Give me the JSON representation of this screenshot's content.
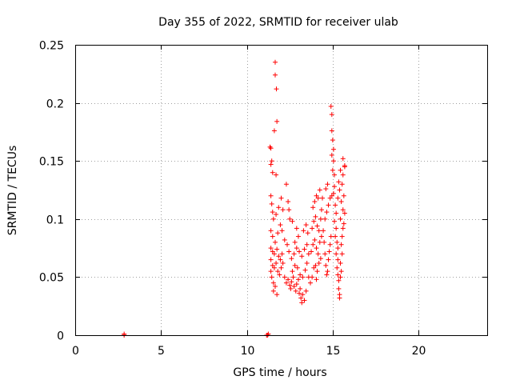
{
  "chart_data": {
    "type": "scatter",
    "title": "Day 355 of 2022, SRMTID for receiver ulab",
    "xlabel": "GPS time / hours",
    "ylabel": "SRMTID / TECUs",
    "xlim": [
      0,
      24
    ],
    "ylim": [
      0,
      0.25
    ],
    "xticks": [
      0,
      5,
      10,
      15,
      20
    ],
    "yticks": [
      0,
      0.05,
      0.1,
      0.15,
      0.2,
      0.25
    ],
    "xtick_labels": [
      "0",
      "5",
      "10",
      "15",
      "20"
    ],
    "ytick_labels": [
      "0",
      "0.05",
      "0.1",
      "0.15",
      "0.2",
      "0.25"
    ],
    "grid": true,
    "marker": "+",
    "series": [
      {
        "name": "SRMTID",
        "color": "#ff0000",
        "points": [
          [
            2.85,
            0.0
          ],
          [
            2.85,
            0.001
          ],
          [
            11.15,
            0.0
          ],
          [
            11.2,
            0.0
          ],
          [
            11.25,
            0.001
          ],
          [
            11.65,
            0.235
          ],
          [
            11.65,
            0.224
          ],
          [
            11.72,
            0.212
          ],
          [
            11.75,
            0.184
          ],
          [
            11.6,
            0.176
          ],
          [
            11.35,
            0.162
          ],
          [
            11.4,
            0.161
          ],
          [
            11.45,
            0.15
          ],
          [
            11.4,
            0.147
          ],
          [
            11.5,
            0.14
          ],
          [
            11.7,
            0.138
          ],
          [
            11.4,
            0.12
          ],
          [
            11.45,
            0.113
          ],
          [
            11.5,
            0.106
          ],
          [
            11.55,
            0.1
          ],
          [
            11.7,
            0.104
          ],
          [
            11.85,
            0.11
          ],
          [
            12.0,
            0.118
          ],
          [
            12.1,
            0.108
          ],
          [
            12.3,
            0.13
          ],
          [
            11.4,
            0.09
          ],
          [
            11.5,
            0.085
          ],
          [
            11.65,
            0.08
          ],
          [
            11.8,
            0.088
          ],
          [
            11.95,
            0.095
          ],
          [
            12.05,
            0.09
          ],
          [
            12.2,
            0.082
          ],
          [
            12.35,
            0.078
          ],
          [
            11.4,
            0.075
          ],
          [
            11.5,
            0.072
          ],
          [
            11.6,
            0.07
          ],
          [
            11.75,
            0.074
          ],
          [
            11.85,
            0.068
          ],
          [
            11.95,
            0.065
          ],
          [
            12.05,
            0.07
          ],
          [
            11.4,
            0.065
          ],
          [
            11.5,
            0.06
          ],
          [
            11.6,
            0.058
          ],
          [
            11.7,
            0.062
          ],
          [
            11.8,
            0.055
          ],
          [
            11.9,
            0.052
          ],
          [
            12.0,
            0.058
          ],
          [
            12.1,
            0.062
          ],
          [
            11.45,
            0.05
          ],
          [
            11.55,
            0.045
          ],
          [
            11.65,
            0.042
          ],
          [
            11.55,
            0.038
          ],
          [
            11.75,
            0.035
          ],
          [
            11.4,
            0.055
          ],
          [
            12.2,
            0.05
          ],
          [
            12.3,
            0.045
          ],
          [
            12.4,
            0.048
          ],
          [
            12.5,
            0.043
          ],
          [
            12.55,
            0.04
          ],
          [
            12.6,
            0.046
          ],
          [
            12.7,
            0.05
          ],
          [
            12.75,
            0.042
          ],
          [
            12.85,
            0.038
          ],
          [
            12.9,
            0.044
          ],
          [
            13.0,
            0.048
          ],
          [
            13.05,
            0.036
          ],
          [
            13.1,
            0.04
          ],
          [
            13.15,
            0.032
          ],
          [
            13.25,
            0.035
          ],
          [
            13.2,
            0.028
          ],
          [
            13.35,
            0.03
          ],
          [
            13.45,
            0.038
          ],
          [
            12.65,
            0.055
          ],
          [
            12.8,
            0.06
          ],
          [
            12.95,
            0.058
          ],
          [
            13.1,
            0.052
          ],
          [
            13.25,
            0.05
          ],
          [
            13.4,
            0.056
          ],
          [
            13.5,
            0.062
          ],
          [
            13.6,
            0.05
          ],
          [
            12.6,
            0.066
          ],
          [
            12.75,
            0.07
          ],
          [
            12.9,
            0.075
          ],
          [
            13.05,
            0.072
          ],
          [
            13.2,
            0.068
          ],
          [
            13.35,
            0.074
          ],
          [
            13.5,
            0.078
          ],
          [
            13.6,
            0.07
          ],
          [
            12.45,
            0.072
          ],
          [
            12.8,
            0.08
          ],
          [
            13.0,
            0.085
          ],
          [
            13.3,
            0.09
          ],
          [
            13.45,
            0.095
          ],
          [
            13.55,
            0.088
          ],
          [
            12.4,
            0.115
          ],
          [
            12.45,
            0.108
          ],
          [
            12.5,
            0.1
          ],
          [
            12.65,
            0.098
          ],
          [
            12.9,
            0.092
          ],
          [
            13.7,
            0.045
          ],
          [
            13.8,
            0.05
          ],
          [
            13.9,
            0.058
          ],
          [
            14.0,
            0.06
          ],
          [
            14.05,
            0.048
          ],
          [
            14.1,
            0.055
          ],
          [
            14.2,
            0.062
          ],
          [
            14.3,
            0.066
          ],
          [
            13.75,
            0.072
          ],
          [
            13.85,
            0.078
          ],
          [
            13.95,
            0.082
          ],
          [
            14.05,
            0.075
          ],
          [
            14.15,
            0.07
          ],
          [
            14.25,
            0.08
          ],
          [
            14.35,
            0.085
          ],
          [
            13.8,
            0.092
          ],
          [
            13.9,
            0.098
          ],
          [
            14.0,
            0.102
          ],
          [
            14.1,
            0.094
          ],
          [
            14.2,
            0.09
          ],
          [
            14.3,
            0.1
          ],
          [
            14.35,
            0.108
          ],
          [
            13.85,
            0.11
          ],
          [
            13.95,
            0.115
          ],
          [
            14.05,
            0.12
          ],
          [
            14.15,
            0.118
          ],
          [
            14.25,
            0.125
          ],
          [
            14.4,
            0.118
          ],
          [
            14.45,
            0.09
          ],
          [
            14.5,
            0.08
          ],
          [
            14.55,
            0.07
          ],
          [
            14.6,
            0.06
          ],
          [
            14.65,
            0.052
          ],
          [
            14.7,
            0.055
          ],
          [
            14.75,
            0.065
          ],
          [
            14.8,
            0.072
          ],
          [
            14.85,
            0.078
          ],
          [
            14.9,
            0.085
          ],
          [
            14.55,
            0.1
          ],
          [
            14.65,
            0.106
          ],
          [
            14.75,
            0.112
          ],
          [
            14.85,
            0.118
          ],
          [
            14.6,
            0.126
          ],
          [
            14.7,
            0.13
          ],
          [
            14.95,
            0.12
          ],
          [
            14.9,
            0.197
          ],
          [
            14.95,
            0.19
          ],
          [
            14.95,
            0.176
          ],
          [
            15.0,
            0.168
          ],
          [
            15.05,
            0.16
          ],
          [
            14.95,
            0.155
          ],
          [
            15.05,
            0.15
          ],
          [
            15.0,
            0.142
          ],
          [
            15.1,
            0.138
          ],
          [
            15.1,
            0.128
          ],
          [
            15.05,
            0.122
          ],
          [
            15.15,
            0.112
          ],
          [
            15.2,
            0.105
          ],
          [
            15.1,
            0.098
          ],
          [
            15.2,
            0.092
          ],
          [
            15.15,
            0.085
          ],
          [
            15.25,
            0.08
          ],
          [
            15.3,
            0.075
          ],
          [
            15.2,
            0.07
          ],
          [
            15.3,
            0.065
          ],
          [
            15.25,
            0.058
          ],
          [
            15.3,
            0.052
          ],
          [
            15.35,
            0.047
          ],
          [
            15.35,
            0.04
          ],
          [
            15.4,
            0.035
          ],
          [
            15.4,
            0.032
          ],
          [
            15.45,
            0.05
          ],
          [
            15.5,
            0.055
          ],
          [
            15.45,
            0.062
          ],
          [
            15.55,
            0.07
          ],
          [
            15.5,
            0.078
          ],
          [
            15.55,
            0.085
          ],
          [
            15.6,
            0.092
          ],
          [
            15.45,
            0.1
          ],
          [
            15.6,
            0.108
          ],
          [
            15.5,
            0.115
          ],
          [
            15.65,
            0.12
          ],
          [
            15.55,
            0.13
          ],
          [
            15.6,
            0.138
          ],
          [
            15.7,
            0.146
          ],
          [
            15.6,
            0.152
          ],
          [
            15.7,
            0.145
          ],
          [
            15.45,
            0.142
          ],
          [
            15.35,
            0.132
          ],
          [
            15.4,
            0.125
          ],
          [
            15.3,
            0.118
          ],
          [
            15.65,
            0.096
          ],
          [
            15.7,
            0.105
          ]
        ]
      }
    ]
  }
}
